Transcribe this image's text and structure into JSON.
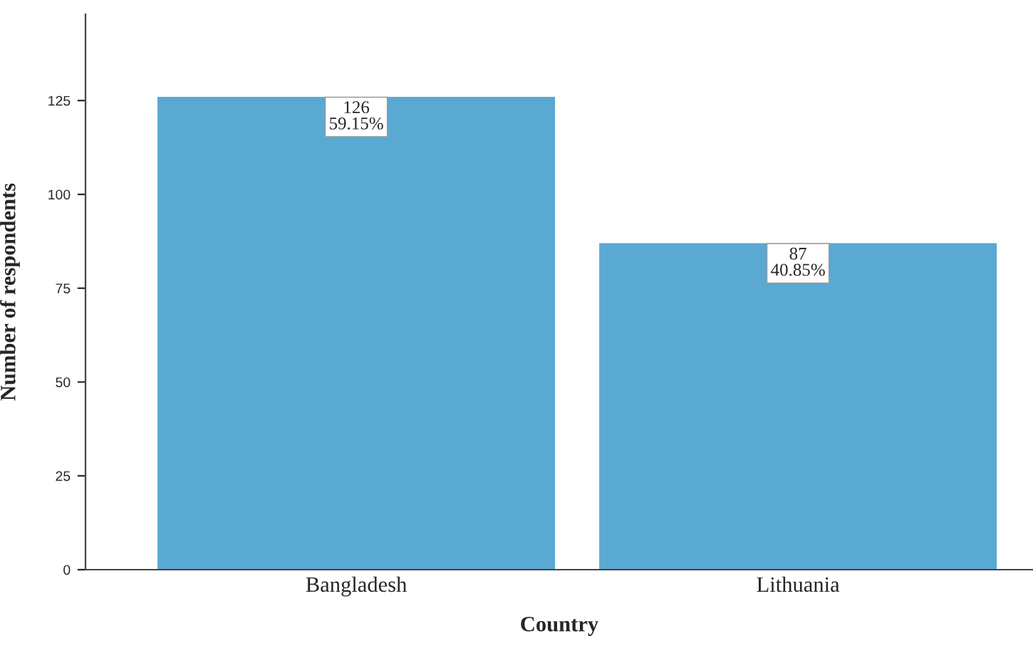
{
  "chart_data": {
    "type": "bar",
    "xlabel": "Country",
    "ylabel": "Number of respondents",
    "categories": [
      "Bangladesh",
      "Lithuania"
    ],
    "values": [
      126,
      87
    ],
    "value_labels": [
      "126\n59.15%",
      "87\n40.85%"
    ],
    "color": "#5aa9d2",
    "ylim": [
      0,
      148
    ],
    "yticks": [
      0,
      25,
      50,
      75,
      100,
      125
    ],
    "grid": false,
    "legend": false
  }
}
